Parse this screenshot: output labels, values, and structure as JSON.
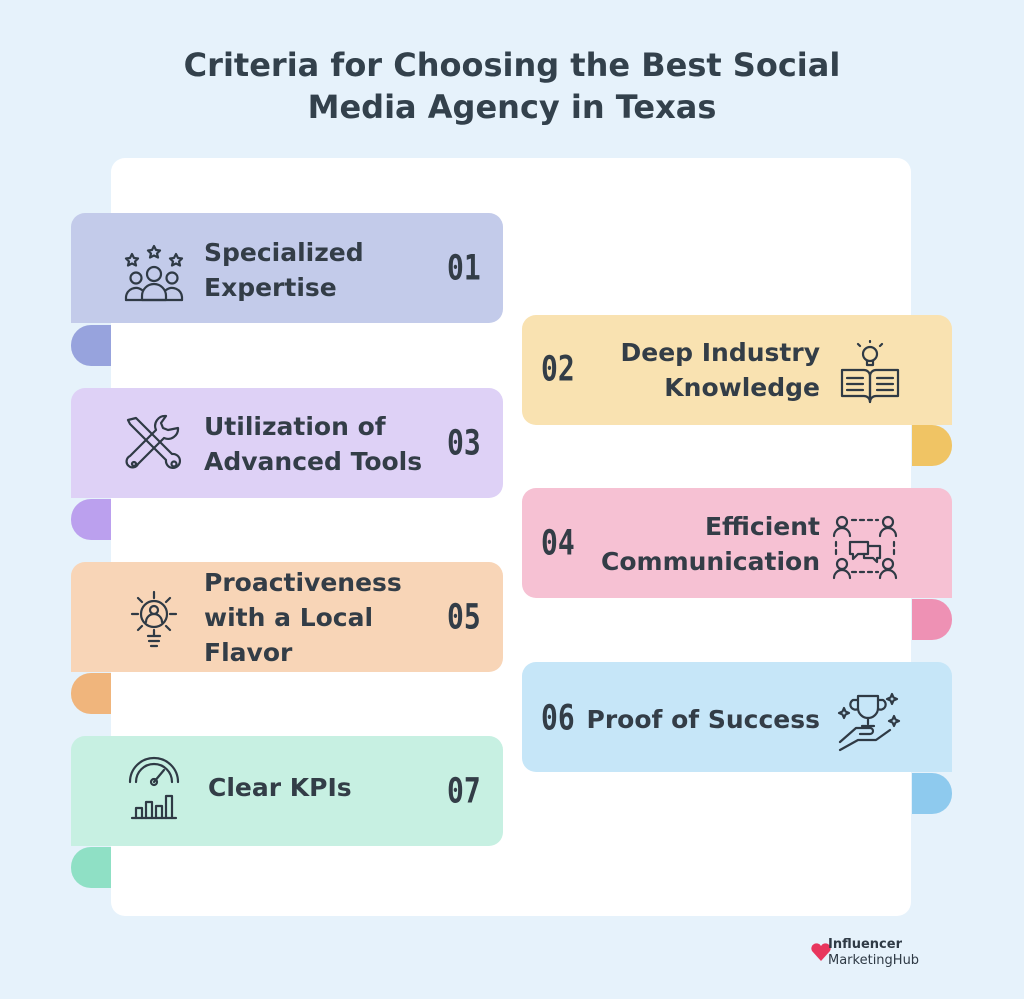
{
  "title": {
    "line1": "Criteria for Choosing the Best Social",
    "line2": "Media Agency in Texas"
  },
  "items": [
    {
      "number": "01",
      "line1": "Specialized",
      "line2": "Expertise",
      "line3": "",
      "icon": "team-stars-icon",
      "color": "#c3cbea",
      "tab_color": "#97a3dd"
    },
    {
      "number": "02",
      "line1": "Deep Industry",
      "line2": "Knowledge",
      "line3": "",
      "icon": "book-lightbulb-icon",
      "color": "#f9e2b1",
      "tab_color": "#f0c464"
    },
    {
      "number": "03",
      "line1": "Utilization of",
      "line2": "Advanced Tools",
      "line3": "",
      "icon": "tools-icon",
      "color": "#ded1f6",
      "tab_color": "#bba0ee"
    },
    {
      "number": "04",
      "line1": "Efficient",
      "line2": "Communication",
      "line3": "",
      "icon": "people-chat-icon",
      "color": "#f6c1d3",
      "tab_color": "#ee91b4"
    },
    {
      "number": "05",
      "line1": "Proactiveness",
      "line2": "with a Local",
      "line3": "Flavor",
      "icon": "lightbulb-gear-icon",
      "color": "#f8d5b7",
      "tab_color": "#f0b57c"
    },
    {
      "number": "06",
      "line1": "Proof of Success",
      "line2": "",
      "line3": "",
      "icon": "trophy-hand-icon",
      "color": "#c6e6f8",
      "tab_color": "#8ecaee"
    },
    {
      "number": "07",
      "line1": "Clear KPIs",
      "line2": "",
      "line3": "",
      "icon": "gauge-chart-icon",
      "color": "#c7f0e2",
      "tab_color": "#8fe0c5"
    }
  ],
  "brand": {
    "line1": "Influencer",
    "line2": "MarketingHub",
    "color": "#e8365d"
  }
}
